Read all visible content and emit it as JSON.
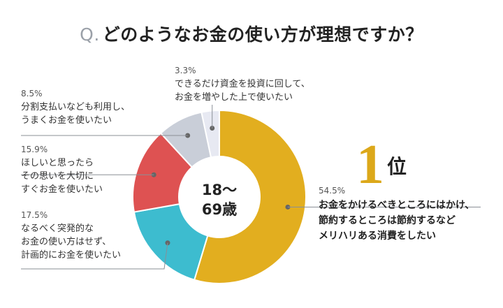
{
  "title": {
    "prefix": "Q.",
    "text": "どのようなお金の使い方が理想ですか？"
  },
  "center_label": {
    "line1": "18〜",
    "line2": "69歳"
  },
  "rank_badge": {
    "number": "1",
    "unit": "位"
  },
  "chart_data": {
    "type": "pie",
    "title": "どのようなお金の使い方が理想ですか？",
    "center_text": "18〜69歳",
    "start": "12 o'clock, clockwise",
    "slices": [
      {
        "value": 54.5,
        "value_label": "54.5%",
        "label": "お金をかけるべきところにはかけ、\n節約するところは節約するなど\nメリハリある消費をしたい",
        "color": "#e2ae1f"
      },
      {
        "value": 17.5,
        "value_label": "17.5%",
        "label": "なるべく突発的な\nお金の使い方はせず、\n計画的にお金を使いたい",
        "color": "#3dbccf"
      },
      {
        "value": 15.9,
        "value_label": "15.9%",
        "label": "ほしいと思ったら\nその思いを大切に\nすぐお金を使いたい",
        "color": "#de5252"
      },
      {
        "value": 8.5,
        "value_label": "8.5%",
        "label": "分割支払いなども利用し、\nうまくお金を使いたい",
        "color": "#c9ced8"
      },
      {
        "value": 3.3,
        "value_label": "3.3%",
        "label": "できるだけ資金を投資に回して、\nお金を増やした上で使いたい",
        "color": "#e7e9f2"
      }
    ]
  }
}
